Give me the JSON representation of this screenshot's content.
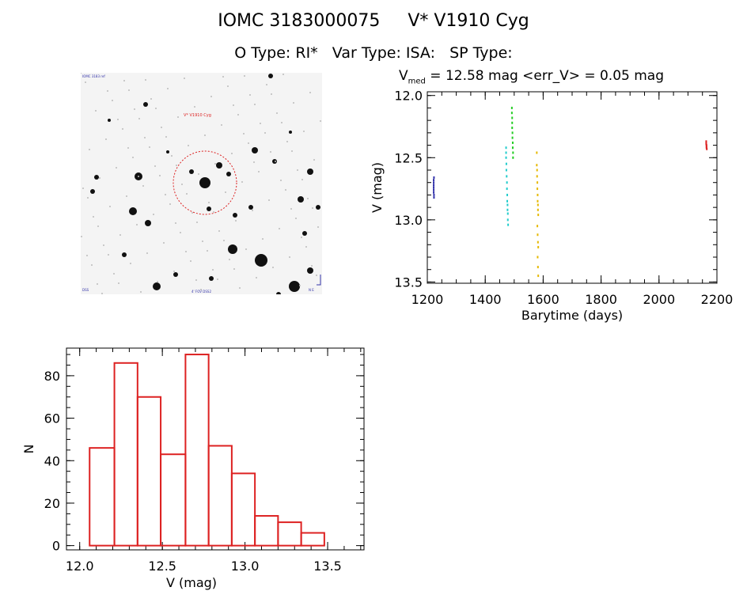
{
  "header": {
    "title_line1": "IOMC 3183000075     V* V1910 Cyg",
    "title_line2": "O Type: RI*   Var Type: ISA:   SP Type:",
    "stats_prefix": "V",
    "stats_sub": "med",
    "stats_rest": " = 12.58 mag <err_V> = 0.05 mag"
  },
  "finder": {
    "top_left_label": "IOMC 3183 ref",
    "target_label": "V* V1910 Cyg",
    "bottom_label": "4' FOV DSS2",
    "bottom_left_label": "DSS",
    "bottom_right_label": "N E"
  },
  "chart_data": [
    {
      "type": "scatter",
      "xlabel": "Barytime (days)",
      "ylabel": "V (mag)",
      "xlim": [
        1200,
        2200
      ],
      "ylim": [
        13.5,
        12.0
      ],
      "y_inverted": true,
      "xticks": [
        1200,
        1400,
        1600,
        1800,
        2000,
        2200
      ],
      "yticks": [
        12.0,
        12.5,
        13.0,
        13.5
      ],
      "series": [
        {
          "color": "#3333aa",
          "points": [
            [
              1222,
              12.68
            ],
            [
              1222,
              12.7
            ],
            [
              1222,
              12.72
            ],
            [
              1222,
              12.74
            ],
            [
              1222,
              12.76
            ],
            [
              1222,
              12.78
            ],
            [
              1223,
              12.66
            ],
            [
              1223,
              12.8
            ],
            [
              1223,
              12.82
            ]
          ]
        },
        {
          "color": "#22cccc",
          "points": [
            [
              1472,
              12.42
            ],
            [
              1472,
              12.46
            ],
            [
              1472,
              12.5
            ],
            [
              1473,
              12.55
            ],
            [
              1473,
              12.6
            ],
            [
              1474,
              12.65
            ],
            [
              1475,
              12.7
            ],
            [
              1475,
              12.75
            ],
            [
              1476,
              12.8
            ],
            [
              1476,
              12.85
            ],
            [
              1477,
              12.88
            ],
            [
              1477,
              12.92
            ],
            [
              1478,
              12.95
            ],
            [
              1478,
              13.0
            ],
            [
              1479,
              13.04
            ]
          ]
        },
        {
          "color": "#22cc22",
          "points": [
            [
              1492,
              12.1
            ],
            [
              1492,
              12.14
            ],
            [
              1493,
              12.18
            ],
            [
              1493,
              12.22
            ],
            [
              1493,
              12.26
            ],
            [
              1494,
              12.3
            ],
            [
              1494,
              12.34
            ],
            [
              1495,
              12.38
            ],
            [
              1495,
              12.42
            ],
            [
              1496,
              12.46
            ],
            [
              1496,
              12.5
            ]
          ]
        },
        {
          "color": "#e6b800",
          "points": [
            [
              1578,
              12.46
            ],
            [
              1578,
              12.56
            ],
            [
              1579,
              12.6
            ],
            [
              1579,
              12.65
            ],
            [
              1580,
              12.7
            ],
            [
              1580,
              12.75
            ],
            [
              1581,
              12.8
            ],
            [
              1581,
              12.85
            ],
            [
              1582,
              12.88
            ],
            [
              1582,
              12.92
            ],
            [
              1583,
              12.96
            ],
            [
              1580,
              13.05
            ],
            [
              1581,
              13.12
            ],
            [
              1582,
              13.18
            ],
            [
              1583,
              13.22
            ],
            [
              1581,
              13.3
            ],
            [
              1582,
              13.38
            ],
            [
              1583,
              13.45
            ]
          ]
        },
        {
          "color": "#dd2222",
          "points": [
            [
              2163,
              12.37
            ],
            [
              2163,
              12.38
            ],
            [
              2163,
              12.39
            ],
            [
              2164,
              12.4
            ],
            [
              2164,
              12.41
            ],
            [
              2164,
              12.42
            ],
            [
              2165,
              12.43
            ]
          ]
        }
      ]
    },
    {
      "type": "bar",
      "subtype": "histogram",
      "xlabel": "V (mag)",
      "ylabel": "N",
      "xlim": [
        11.92,
        13.72
      ],
      "ylim": [
        -2,
        93
      ],
      "xticks": [
        12.0,
        12.5,
        13.0,
        13.5
      ],
      "yticks": [
        0,
        20,
        40,
        60,
        80
      ],
      "bin_edges": [
        12.06,
        12.21,
        12.35,
        12.49,
        12.64,
        12.78,
        12.92,
        13.06,
        13.2,
        13.34,
        13.48
      ],
      "values": [
        46,
        86,
        70,
        43,
        90,
        47,
        34,
        14,
        11,
        6
      ],
      "bar_color": "#dd2222"
    }
  ]
}
